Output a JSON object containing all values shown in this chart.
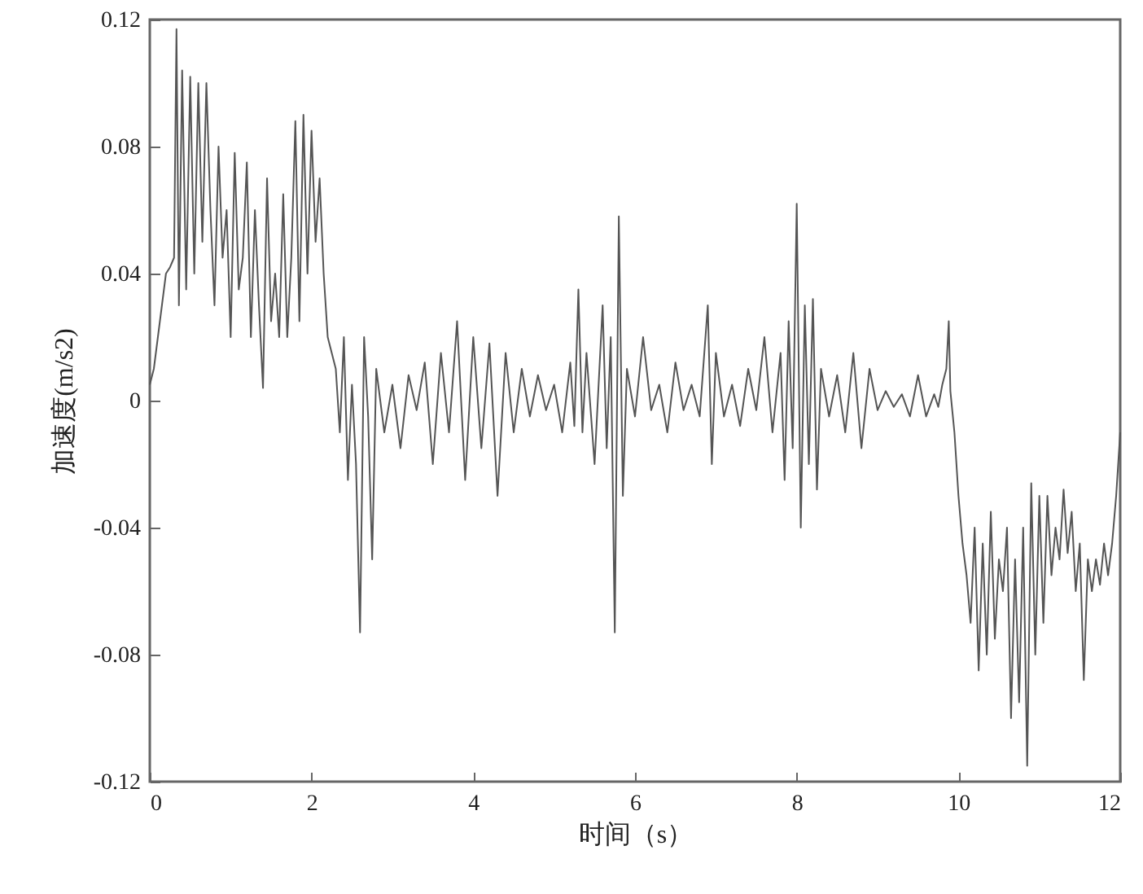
{
  "chart_data": {
    "type": "line",
    "xlabel": "时间（s）",
    "ylabel": "加速度(m/s2)",
    "xlim": [
      0,
      12
    ],
    "ylim": [
      -0.12,
      0.12
    ],
    "xticks": [
      0,
      2,
      4,
      6,
      8,
      10,
      12
    ],
    "yticks": [
      -0.12,
      -0.08,
      -0.04,
      0,
      0.04,
      0.08,
      0.12
    ],
    "grid": false,
    "series": [
      {
        "color": "#555555",
        "x": [
          0,
          0.05,
          0.1,
          0.15,
          0.2,
          0.25,
          0.3,
          0.33,
          0.36,
          0.4,
          0.45,
          0.5,
          0.55,
          0.6,
          0.65,
          0.7,
          0.75,
          0.8,
          0.85,
          0.9,
          0.95,
          1.0,
          1.05,
          1.1,
          1.15,
          1.2,
          1.25,
          1.3,
          1.35,
          1.4,
          1.45,
          1.5,
          1.55,
          1.6,
          1.65,
          1.7,
          1.75,
          1.8,
          1.85,
          1.9,
          1.95,
          2.0,
          2.05,
          2.1,
          2.15,
          2.2,
          2.25,
          2.3,
          2.35,
          2.4,
          2.45,
          2.5,
          2.55,
          2.6,
          2.65,
          2.7,
          2.75,
          2.8,
          2.9,
          3.0,
          3.1,
          3.2,
          3.3,
          3.4,
          3.5,
          3.6,
          3.7,
          3.8,
          3.9,
          4.0,
          4.1,
          4.2,
          4.3,
          4.4,
          4.5,
          4.6,
          4.7,
          4.8,
          4.9,
          5.0,
          5.1,
          5.2,
          5.25,
          5.3,
          5.35,
          5.4,
          5.5,
          5.6,
          5.65,
          5.7,
          5.75,
          5.8,
          5.85,
          5.9,
          6.0,
          6.1,
          6.2,
          6.3,
          6.4,
          6.5,
          6.6,
          6.7,
          6.8,
          6.9,
          6.95,
          7.0,
          7.1,
          7.2,
          7.3,
          7.4,
          7.5,
          7.6,
          7.7,
          7.8,
          7.85,
          7.9,
          7.95,
          8.0,
          8.05,
          8.1,
          8.15,
          8.2,
          8.25,
          8.3,
          8.4,
          8.5,
          8.6,
          8.7,
          8.8,
          8.9,
          9.0,
          9.1,
          9.2,
          9.3,
          9.4,
          9.5,
          9.6,
          9.7,
          9.75,
          9.8,
          9.85,
          9.88,
          9.9,
          9.95,
          10.0,
          10.05,
          10.1,
          10.15,
          10.2,
          10.25,
          10.3,
          10.35,
          10.4,
          10.45,
          10.5,
          10.55,
          10.6,
          10.65,
          10.7,
          10.75,
          10.8,
          10.85,
          10.9,
          10.95,
          11.0,
          11.05,
          11.1,
          11.15,
          11.2,
          11.25,
          11.3,
          11.35,
          11.4,
          11.45,
          11.5,
          11.55,
          11.6,
          11.65,
          11.7,
          11.75,
          11.8,
          11.85,
          11.9,
          11.95,
          12.0
        ],
        "values": [
          0.005,
          0.01,
          0.02,
          0.03,
          0.04,
          0.042,
          0.045,
          0.117,
          0.03,
          0.104,
          0.035,
          0.102,
          0.04,
          0.1,
          0.05,
          0.1,
          0.06,
          0.03,
          0.08,
          0.045,
          0.06,
          0.02,
          0.078,
          0.035,
          0.045,
          0.075,
          0.02,
          0.06,
          0.03,
          0.004,
          0.07,
          0.025,
          0.04,
          0.02,
          0.065,
          0.02,
          0.045,
          0.088,
          0.025,
          0.09,
          0.04,
          0.085,
          0.05,
          0.07,
          0.04,
          0.02,
          0.015,
          0.01,
          -0.01,
          0.02,
          -0.025,
          0.005,
          -0.02,
          -0.073,
          0.02,
          -0.005,
          -0.05,
          0.01,
          -0.01,
          0.005,
          -0.015,
          0.008,
          -0.003,
          0.012,
          -0.02,
          0.015,
          -0.01,
          0.025,
          -0.025,
          0.02,
          -0.015,
          0.018,
          -0.03,
          0.015,
          -0.01,
          0.01,
          -0.005,
          0.008,
          -0.003,
          0.005,
          -0.01,
          0.012,
          -0.008,
          0.035,
          -0.01,
          0.015,
          -0.02,
          0.03,
          -0.015,
          0.02,
          -0.073,
          0.058,
          -0.03,
          0.01,
          -0.005,
          0.02,
          -0.003,
          0.005,
          -0.01,
          0.012,
          -0.003,
          0.005,
          -0.005,
          0.03,
          -0.02,
          0.015,
          -0.005,
          0.005,
          -0.008,
          0.01,
          -0.003,
          0.02,
          -0.01,
          0.015,
          -0.025,
          0.025,
          -0.015,
          0.062,
          -0.04,
          0.03,
          -0.02,
          0.032,
          -0.028,
          0.01,
          -0.005,
          0.008,
          -0.01,
          0.015,
          -0.015,
          0.01,
          -0.003,
          0.003,
          -0.002,
          0.002,
          -0.005,
          0.008,
          -0.005,
          0.002,
          -0.002,
          0.005,
          0.01,
          0.025,
          0.003,
          -0.01,
          -0.03,
          -0.045,
          -0.055,
          -0.07,
          -0.04,
          -0.085,
          -0.045,
          -0.08,
          -0.035,
          -0.075,
          -0.05,
          -0.06,
          -0.04,
          -0.1,
          -0.05,
          -0.095,
          -0.04,
          -0.115,
          -0.026,
          -0.08,
          -0.03,
          -0.07,
          -0.03,
          -0.055,
          -0.04,
          -0.05,
          -0.028,
          -0.048,
          -0.035,
          -0.06,
          -0.045,
          -0.088,
          -0.05,
          -0.06,
          -0.05,
          -0.058,
          -0.045,
          -0.055,
          -0.045,
          -0.03,
          -0.01
        ]
      }
    ]
  }
}
